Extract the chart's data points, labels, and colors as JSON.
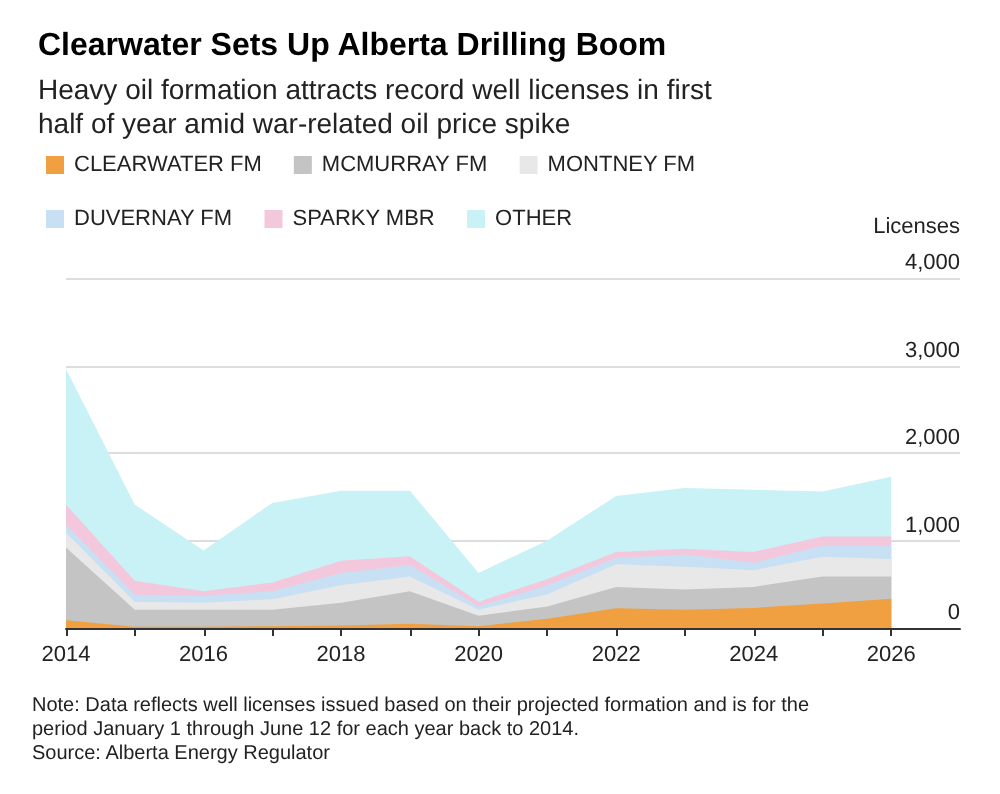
{
  "chart_data": {
    "type": "area",
    "stacked": true,
    "title": "Clearwater Sets Up Alberta Drilling Boom",
    "subtitle": "Heavy oil formation attracts record well licenses in first half of year amid war-related oil price spike",
    "ylabel": "Licenses",
    "x": [
      2014,
      2015,
      2016,
      2017,
      2018,
      2019,
      2020,
      2021,
      2022,
      2023,
      2024,
      2025,
      2026
    ],
    "series": [
      {
        "name": "CLEARWATER FM",
        "color": "#f0a040",
        "values": [
          90,
          15,
          15,
          20,
          30,
          50,
          20,
          105,
          225,
          210,
          230,
          280,
          335
        ]
      },
      {
        "name": "MCMURRAY FM",
        "color": "#c4c4c4",
        "values": [
          830,
          195,
          195,
          190,
          260,
          370,
          120,
          140,
          245,
          230,
          240,
          310,
          255
        ]
      },
      {
        "name": "MONTNEY FM",
        "color": "#e8e8e8",
        "values": [
          170,
          90,
          80,
          120,
          200,
          170,
          70,
          140,
          260,
          260,
          190,
          225,
          200
        ]
      },
      {
        "name": "DUVERNAY FM",
        "color": "#c8e0f4",
        "values": [
          90,
          80,
          80,
          90,
          140,
          130,
          35,
          105,
          70,
          140,
          85,
          125,
          150
        ]
      },
      {
        "name": "SPARKY MBR",
        "color": "#f4c8dc",
        "values": [
          230,
          160,
          50,
          100,
          140,
          100,
          55,
          70,
          70,
          65,
          125,
          105,
          105
        ]
      },
      {
        "name": "OTHER",
        "color": "#c8f2f6",
        "values": [
          1550,
          870,
          465,
          910,
          800,
          750,
          330,
          440,
          640,
          695,
          710,
          515,
          685
        ]
      }
    ],
    "xlim": [
      2014,
      2027
    ],
    "xticks": [
      2014,
      {
        "value": 2015,
        "label": null
      },
      2016,
      {
        "value": 2017,
        "label": null
      },
      2018,
      {
        "value": 2019,
        "label": null
      },
      2020,
      {
        "value": 2021,
        "label": null
      },
      2022,
      {
        "value": 2023,
        "label": null
      },
      2024,
      {
        "value": 2025,
        "label": null
      },
      2026
    ],
    "ylim": [
      0,
      4000
    ],
    "yticks": [
      0,
      {
        "value": 1000,
        "label": "1,000"
      },
      {
        "value": 2000,
        "label": "2,000"
      },
      {
        "value": 3000,
        "label": "3,000"
      },
      {
        "value": 4000,
        "label": "4,000"
      }
    ],
    "grid": "y",
    "legend": "top left",
    "annotations": [
      "Note: Data reflects well licenses issued based on their projected formation and is for the period January 1 through June 12 for each year back to 2014.",
      "Source: Alberta Energy Regulator"
    ]
  }
}
